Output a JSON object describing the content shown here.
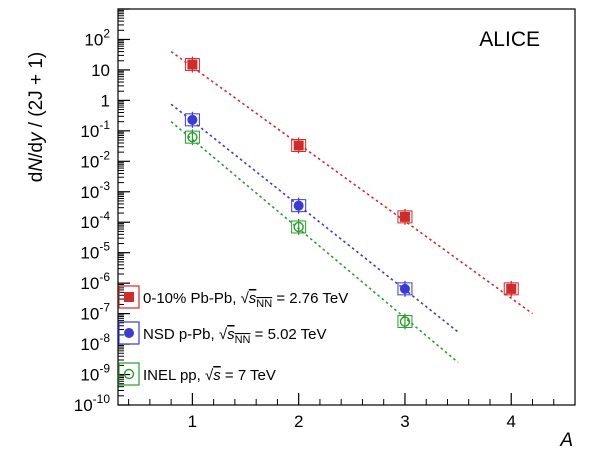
{
  "chart_data": {
    "type": "scatter",
    "title": "ALICE",
    "xlabel": "A",
    "ylabel": "dN/dy / (2J + 1)",
    "xlim": [
      0.3,
      4.6
    ],
    "ylim": [
      1e-10,
      1000
    ],
    "yscale": "log",
    "x_ticks": [
      1,
      2,
      3,
      4
    ],
    "y_ticks": [
      "10^-10",
      "10^-9",
      "10^-8",
      "10^-7",
      "10^-6",
      "10^-5",
      "10^-4",
      "10^-3",
      "10^-2",
      "10^-1",
      "1",
      "10",
      "10^2"
    ],
    "grid": false,
    "legend_position": "bottom-left",
    "series": [
      {
        "name": "0-10% Pb-Pb, √s_NN = 2.76 TeV",
        "legend_main": "0-10% Pb-Pb, ",
        "legend_energy": " = 2.76 TeV",
        "legend_sqrt": "s",
        "legend_sub": "NN",
        "marker": "filled-square",
        "color": "#d12c2c",
        "x": [
          1,
          2,
          3,
          4
        ],
        "y": [
          15,
          0.033,
          0.00015,
          6.5e-07
        ],
        "fit": {
          "x": [
            0.8,
            4.2
          ],
          "y": [
            40,
            1e-07
          ]
        }
      },
      {
        "name": "NSD p-Pb, √s_NN = 5.02 TeV",
        "legend_main": "NSD p-Pb, ",
        "legend_energy": " = 5.02 TeV",
        "legend_sqrt": "s",
        "legend_sub": "NN",
        "marker": "filled-circle",
        "color": "#3a3ad6",
        "x": [
          1,
          2,
          3
        ],
        "y": [
          0.23,
          0.00035,
          6.5e-07
        ],
        "fit": {
          "x": [
            0.8,
            3.5
          ],
          "y": [
            0.75,
            2.5e-08
          ]
        }
      },
      {
        "name": "INEL pp, √s = 7 TeV",
        "legend_main": "INEL pp, ",
        "legend_energy": " = 7 TeV",
        "legend_sqrt": "s",
        "legend_sub": "",
        "marker": "open-circle",
        "color": "#2a9d2a",
        "x": [
          1,
          2,
          3
        ],
        "y": [
          0.062,
          7e-05,
          5.5e-08
        ],
        "fit": {
          "x": [
            0.8,
            3.5
          ],
          "y": [
            0.2,
            2.5e-09
          ]
        }
      }
    ]
  }
}
